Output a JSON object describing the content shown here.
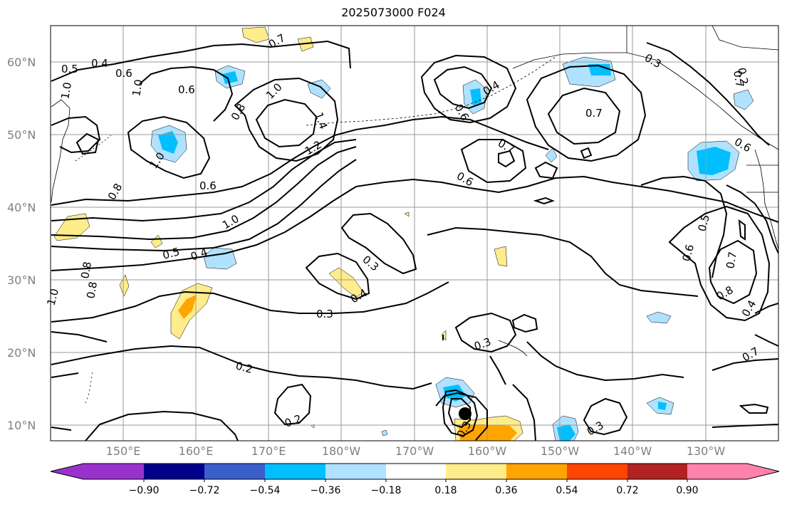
{
  "title": "2025073000 F024",
  "lat_labels": [
    "60°N",
    "50°N",
    "40°N",
    "30°N",
    "20°N",
    "10°N"
  ],
  "lon_labels": [
    "150°E",
    "160°E",
    "170°E",
    "180°W",
    "170°W",
    "160°W",
    "150°W",
    "140°W",
    "130°W"
  ],
  "colorbar": {
    "ticks": [
      "−0.90",
      "−0.72",
      "−0.54",
      "−0.36",
      "−0.18",
      "0.18",
      "0.36",
      "0.54",
      "0.72",
      "0.90"
    ],
    "colors": [
      "#9932cc",
      "#00008b",
      "#3a5fcd",
      "#00bfff",
      "#b0e2ff",
      "#ffffff",
      "#ffec8b",
      "#ffa500",
      "#ff4500",
      "#b22222",
      "#ff82ab"
    ]
  },
  "contour_labels": [
    "0.5",
    "0.4",
    "0.6",
    "0.7",
    "0.6",
    "0.8",
    "1.0",
    "1.0",
    "1.4",
    "1.2",
    "1.0",
    "0.8",
    "0.6",
    "0.6",
    "0.7",
    "0.6",
    "0.4",
    "0.7",
    "0.7",
    "0.6",
    "0.5",
    "0.6",
    "0.8",
    "0.7",
    "0.4",
    "0.7",
    "0.5",
    "0.4",
    "1.0",
    "0.3",
    "0.4",
    "0.3",
    "0.3",
    "0.2",
    "0.2",
    "0.3",
    "0.3",
    "0.3",
    "0.2",
    "1.0",
    "0.8",
    "0.8",
    "1.0"
  ],
  "colors": {
    "contour": "#000000",
    "grid": "#999999",
    "frame": "#000000"
  }
}
